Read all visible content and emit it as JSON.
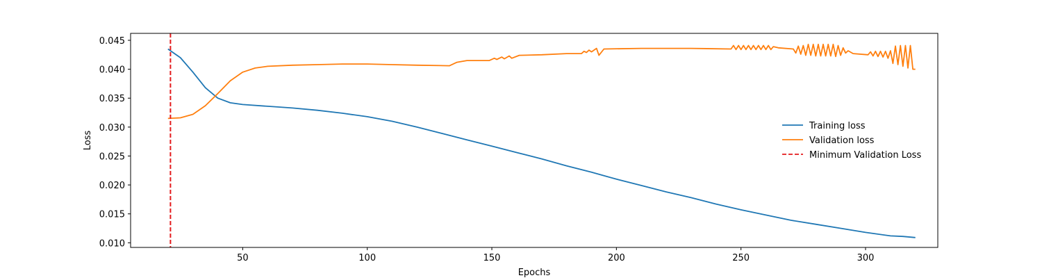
{
  "chart_data": {
    "type": "line",
    "title": "",
    "xlabel": "Epochs",
    "ylabel": "Loss",
    "xlim": [
      5,
      329
    ],
    "ylim": [
      0.0092,
      0.0462
    ],
    "x_ticks": [
      50,
      100,
      150,
      200,
      250,
      300
    ],
    "y_ticks": [
      0.01,
      0.015,
      0.02,
      0.025,
      0.03,
      0.035,
      0.04,
      0.045
    ],
    "y_tick_labels": [
      "0.010",
      "0.015",
      "0.020",
      "0.025",
      "0.030",
      "0.035",
      "0.040",
      "0.045"
    ],
    "grid": false,
    "legend_position": "center-right",
    "series": [
      {
        "name": "Training loss",
        "color": "#1f77b4",
        "style": "solid",
        "points": [
          [
            20,
            0.0435
          ],
          [
            25,
            0.042
          ],
          [
            30,
            0.0395
          ],
          [
            35,
            0.0368
          ],
          [
            40,
            0.035
          ],
          [
            45,
            0.0342
          ],
          [
            50,
            0.0339
          ],
          [
            60,
            0.0336
          ],
          [
            70,
            0.0333
          ],
          [
            80,
            0.0329
          ],
          [
            90,
            0.0324
          ],
          [
            100,
            0.0318
          ],
          [
            110,
            0.031
          ],
          [
            120,
            0.03
          ],
          [
            130,
            0.0289
          ],
          [
            140,
            0.0278
          ],
          [
            150,
            0.0267
          ],
          [
            160,
            0.0256
          ],
          [
            170,
            0.0245
          ],
          [
            180,
            0.0233
          ],
          [
            190,
            0.0222
          ],
          [
            200,
            0.021
          ],
          [
            210,
            0.0199
          ],
          [
            220,
            0.0188
          ],
          [
            230,
            0.0178
          ],
          [
            240,
            0.0167
          ],
          [
            250,
            0.0157
          ],
          [
            260,
            0.0148
          ],
          [
            270,
            0.0139
          ],
          [
            280,
            0.0132
          ],
          [
            290,
            0.0125
          ],
          [
            300,
            0.0118
          ],
          [
            310,
            0.0112
          ],
          [
            315,
            0.0111
          ],
          [
            320,
            0.0109
          ]
        ]
      },
      {
        "name": "Validation loss",
        "color": "#ff7f0e",
        "style": "solid",
        "points": [
          [
            20,
            0.0315
          ],
          [
            25,
            0.0316
          ],
          [
            30,
            0.0322
          ],
          [
            35,
            0.0337
          ],
          [
            40,
            0.0358
          ],
          [
            45,
            0.038
          ],
          [
            50,
            0.0395
          ],
          [
            55,
            0.0402
          ],
          [
            60,
            0.0405
          ],
          [
            70,
            0.0407
          ],
          [
            80,
            0.0408
          ],
          [
            90,
            0.0409
          ],
          [
            100,
            0.0409
          ],
          [
            110,
            0.0408
          ],
          [
            120,
            0.0407
          ],
          [
            133,
            0.0406
          ],
          [
            136,
            0.0412
          ],
          [
            140,
            0.0415
          ],
          [
            149,
            0.0415
          ],
          [
            151,
            0.0419
          ],
          [
            152,
            0.0417
          ],
          [
            154,
            0.0421
          ],
          [
            155,
            0.0418
          ],
          [
            157,
            0.0423
          ],
          [
            158,
            0.0419
          ],
          [
            161,
            0.0424
          ],
          [
            170,
            0.0425
          ],
          [
            180,
            0.0427
          ],
          [
            186,
            0.0427
          ],
          [
            187,
            0.0431
          ],
          [
            188,
            0.0429
          ],
          [
            189,
            0.0433
          ],
          [
            190,
            0.043
          ],
          [
            192,
            0.0436
          ],
          [
            193,
            0.0424
          ],
          [
            195,
            0.0435
          ],
          [
            210,
            0.0436
          ],
          [
            230,
            0.0436
          ],
          [
            246,
            0.0435
          ],
          [
            247,
            0.0441
          ],
          [
            248,
            0.0434
          ],
          [
            249,
            0.0441
          ],
          [
            250,
            0.0434
          ],
          [
            251,
            0.0441
          ],
          [
            252,
            0.0434
          ],
          [
            253,
            0.0441
          ],
          [
            254,
            0.0434
          ],
          [
            255,
            0.0441
          ],
          [
            256,
            0.0434
          ],
          [
            257,
            0.0441
          ],
          [
            258,
            0.0434
          ],
          [
            259,
            0.0441
          ],
          [
            260,
            0.0434
          ],
          [
            261,
            0.0441
          ],
          [
            262,
            0.0434
          ],
          [
            263,
            0.0439
          ],
          [
            265,
            0.0437
          ],
          [
            271,
            0.0435
          ],
          [
            272,
            0.0428
          ],
          [
            273,
            0.044
          ],
          [
            274,
            0.0426
          ],
          [
            275,
            0.0441
          ],
          [
            276,
            0.0424
          ],
          [
            277,
            0.0443
          ],
          [
            278,
            0.0424
          ],
          [
            279,
            0.0443
          ],
          [
            280,
            0.0423
          ],
          [
            281,
            0.0443
          ],
          [
            282,
            0.0423
          ],
          [
            283,
            0.0443
          ],
          [
            284,
            0.0423
          ],
          [
            285,
            0.0443
          ],
          [
            286,
            0.0423
          ],
          [
            287,
            0.0443
          ],
          [
            288,
            0.0422
          ],
          [
            289,
            0.0441
          ],
          [
            290,
            0.0424
          ],
          [
            291,
            0.0437
          ],
          [
            292,
            0.0428
          ],
          [
            293,
            0.0432
          ],
          [
            295,
            0.0427
          ],
          [
            301,
            0.0425
          ],
          [
            302,
            0.043
          ],
          [
            303,
            0.0423
          ],
          [
            304,
            0.0431
          ],
          [
            305,
            0.0422
          ],
          [
            306,
            0.0431
          ],
          [
            307,
            0.0421
          ],
          [
            308,
            0.0431
          ],
          [
            309,
            0.0419
          ],
          [
            310,
            0.0432
          ],
          [
            311,
            0.041
          ],
          [
            312,
            0.044
          ],
          [
            313,
            0.0408
          ],
          [
            314,
            0.0441
          ],
          [
            315,
            0.0405
          ],
          [
            316,
            0.0441
          ],
          [
            317,
            0.0402
          ],
          [
            318,
            0.0441
          ],
          [
            319,
            0.04
          ],
          [
            320,
            0.04
          ]
        ]
      },
      {
        "name": "Minimum Validation Loss",
        "color": "#e41a1c",
        "style": "dashed",
        "vline_x": 21
      }
    ]
  }
}
